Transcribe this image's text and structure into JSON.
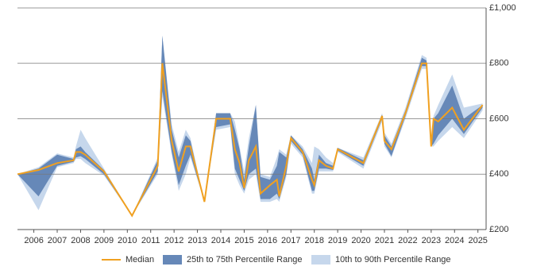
{
  "chart_data": {
    "type": "band-line",
    "x": [
      2005.3,
      2006.2,
      2007.0,
      2007.7,
      2007.8,
      2008.0,
      2008.2,
      2009.0,
      2010.2,
      2011.3,
      2011.5,
      2011.9,
      2012.2,
      2012.5,
      2012.7,
      2013.3,
      2013.8,
      2014.4,
      2014.6,
      2014.8,
      2015.0,
      2015.2,
      2015.5,
      2015.7,
      2016.1,
      2016.4,
      2016.5,
      2016.8,
      2017.0,
      2017.5,
      2017.9,
      2018.0,
      2018.2,
      2018.5,
      2018.8,
      2019.0,
      2020.1,
      2020.9,
      2021.0,
      2021.3,
      2021.9,
      2022.6,
      2022.8,
      2023.0,
      2023.1,
      2023.3,
      2023.9,
      2024.4,
      2025.2
    ],
    "series": [
      {
        "name": "10th to 90th Percentile Range",
        "color": "#c6d7ec",
        "low": [
          400,
          270,
          425,
          440,
          455,
          455,
          440,
          395,
          250,
          400,
          680,
          470,
          340,
          400,
          460,
          300,
          560,
          570,
          400,
          360,
          330,
          380,
          400,
          300,
          300,
          310,
          300,
          390,
          510,
          460,
          330,
          330,
          410,
          410,
          410,
          480,
          420,
          590,
          500,
          460,
          600,
          780,
          780,
          500,
          500,
          520,
          570,
          530,
          630
        ],
        "high": [
          400,
          425,
          475,
          460,
          500,
          560,
          530,
          420,
          250,
          460,
          900,
          580,
          480,
          560,
          530,
          300,
          620,
          620,
          590,
          500,
          410,
          530,
          650,
          400,
          390,
          460,
          490,
          470,
          540,
          500,
          440,
          500,
          490,
          460,
          440,
          495,
          460,
          620,
          550,
          510,
          640,
          830,
          820,
          500,
          610,
          650,
          760,
          640,
          655
        ]
      },
      {
        "name": "25th to 75th Percentile Range",
        "color": "#6688b8",
        "low": [
          400,
          320,
          430,
          445,
          460,
          465,
          455,
          400,
          250,
          410,
          700,
          480,
          360,
          430,
          470,
          300,
          570,
          580,
          420,
          380,
          340,
          400,
          420,
          310,
          310,
          330,
          310,
          400,
          520,
          470,
          340,
          340,
          420,
          420,
          415,
          485,
          430,
          600,
          510,
          465,
          610,
          790,
          790,
          500,
          510,
          540,
          600,
          545,
          640
        ],
        "high": [
          400,
          420,
          470,
          455,
          490,
          500,
          480,
          415,
          250,
          450,
          900,
          560,
          460,
          540,
          520,
          300,
          620,
          620,
          560,
          490,
          380,
          500,
          650,
          390,
          380,
          430,
          480,
          460,
          540,
          490,
          420,
          380,
          470,
          440,
          430,
          495,
          450,
          615,
          540,
          500,
          630,
          820,
          810,
          500,
          600,
          620,
          720,
          600,
          650
        ]
      },
      {
        "name": "Median",
        "color": "#f0a020",
        "values": [
          400,
          415,
          440,
          450,
          480,
          480,
          470,
          410,
          250,
          430,
          800,
          520,
          410,
          500,
          500,
          300,
          600,
          600,
          490,
          440,
          350,
          450,
          500,
          330,
          360,
          380,
          320,
          430,
          530,
          480,
          380,
          360,
          450,
          430,
          420,
          490,
          440,
          610,
          520,
          490,
          620,
          800,
          800,
          500,
          600,
          590,
          640,
          560,
          650
        ]
      }
    ],
    "xlim": [
      2005.3,
      2025.35
    ],
    "xticks": [
      2006,
      2007,
      2008,
      2009,
      2010,
      2011,
      2012,
      2013,
      2014,
      2015,
      2016,
      2017,
      2018,
      2019,
      2020,
      2021,
      2022,
      2023,
      2024,
      2025
    ],
    "ylim": [
      200,
      1000
    ],
    "yticks": [
      {
        "value": 200,
        "label": "£200"
      },
      {
        "value": 400,
        "label": "£400"
      },
      {
        "value": 600,
        "label": "£600"
      },
      {
        "value": 800,
        "label": "£800"
      },
      {
        "value": 1000,
        "label": "£1,000"
      }
    ],
    "grid": true,
    "legend": "bottom"
  }
}
